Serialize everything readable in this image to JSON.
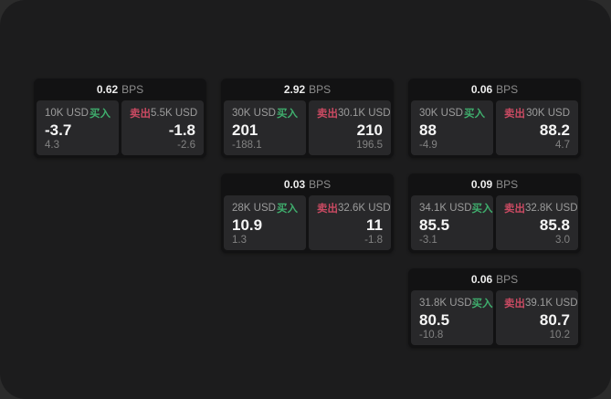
{
  "labels": {
    "bps_suffix": "BPS",
    "buy": "买入",
    "sell": "卖出"
  },
  "colors": {
    "backdrop": "#2b2b2b",
    "page_background": "#1c1c1d",
    "card_background": "#121213",
    "panel_background": "#28282a",
    "buy_green": "#3fae6d",
    "sell_red": "#c94a62",
    "text_primary": "#f5f5f5",
    "text_secondary": "#8d8d8d"
  },
  "cards": [
    {
      "bps": "0.62",
      "col": 1,
      "row": 1,
      "buy": {
        "notional": "10K USD",
        "value": "-3.7",
        "sub": "4.3"
      },
      "sell": {
        "notional": "5.5K USD",
        "value": "-1.8",
        "sub": "-2.6"
      }
    },
    {
      "bps": "2.92",
      "col": 2,
      "row": 1,
      "buy": {
        "notional": "30K USD",
        "value": "201",
        "sub": "-188.1"
      },
      "sell": {
        "notional": "30.1K USD",
        "value": "210",
        "sub": "196.5"
      }
    },
    {
      "bps": "0.06",
      "col": 3,
      "row": 1,
      "buy": {
        "notional": "30K USD",
        "value": "88",
        "sub": "-4.9"
      },
      "sell": {
        "notional": "30K USD",
        "value": "88.2",
        "sub": "4.7"
      }
    },
    {
      "bps": "0.03",
      "col": 2,
      "row": 2,
      "buy": {
        "notional": "28K USD",
        "value": "10.9",
        "sub": "1.3"
      },
      "sell": {
        "notional": "32.6K USD",
        "value": "11",
        "sub": "-1.8"
      }
    },
    {
      "bps": "0.09",
      "col": 3,
      "row": 2,
      "buy": {
        "notional": "34.1K USD",
        "value": "85.5",
        "sub": "-3.1"
      },
      "sell": {
        "notional": "32.8K USD",
        "value": "85.8",
        "sub": "3.0"
      }
    },
    {
      "bps": "0.06",
      "col": 3,
      "row": 3,
      "buy": {
        "notional": "31.8K USD",
        "value": "80.5",
        "sub": "-10.8"
      },
      "sell": {
        "notional": "39.1K USD",
        "value": "80.7",
        "sub": "10.2"
      }
    }
  ]
}
